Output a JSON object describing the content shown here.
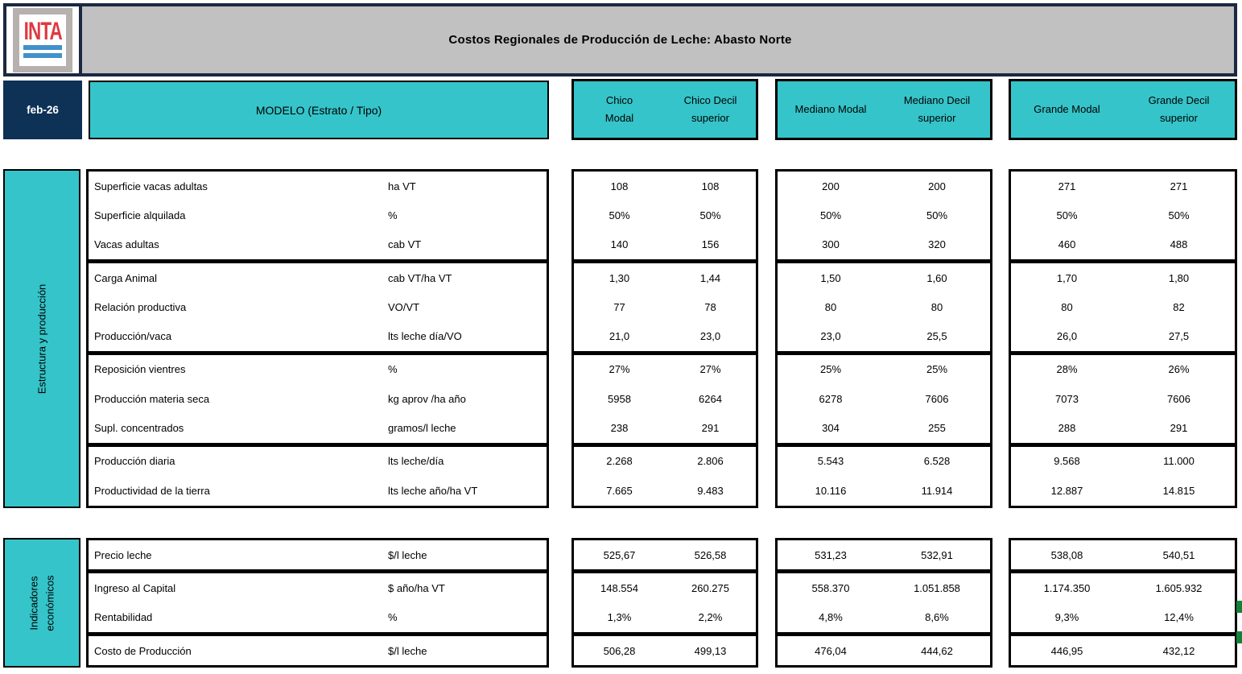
{
  "banner": {
    "logo": "INTA",
    "title": "Costos Regionales de Producción de Leche: Abasto Norte"
  },
  "header": {
    "date": "feb-26",
    "model": "MODELO (Estrato / Tipo)",
    "groups": [
      {
        "modal": "Chico\nModal",
        "decil": "Chico Decil\nsuperior"
      },
      {
        "modal": "Mediano Modal",
        "decil": "Mediano Decil\nsuperior"
      },
      {
        "modal": "Grande Modal",
        "decil": "Grande Decil\nsuperior"
      }
    ]
  },
  "sections": [
    {
      "label": "Estructura y producción"
    },
    {
      "label": "Indicadores\neconómicos"
    }
  ],
  "rows1": [
    {
      "label": "Superficie vacas adultas",
      "unit": "ha VT",
      "v": [
        "108",
        "108",
        "200",
        "200",
        "271",
        "271"
      ]
    },
    {
      "label": "Superficie alquilada",
      "unit": "%",
      "v": [
        "50%",
        "50%",
        "50%",
        "50%",
        "50%",
        "50%"
      ]
    },
    {
      "label": "Vacas adultas",
      "unit": "cab VT",
      "v": [
        "140",
        "156",
        "300",
        "320",
        "460",
        "488"
      ]
    },
    {
      "label": "Carga Animal",
      "unit": "cab VT/ha VT",
      "v": [
        "1,30",
        "1,44",
        "1,50",
        "1,60",
        "1,70",
        "1,80"
      ]
    },
    {
      "label": "Relación productiva",
      "unit": "VO/VT",
      "v": [
        "77",
        "78",
        "80",
        "80",
        "80",
        "82"
      ]
    },
    {
      "label": "Producción/vaca",
      "unit": "lts leche día/VO",
      "v": [
        "21,0",
        "23,0",
        "23,0",
        "25,5",
        "26,0",
        "27,5"
      ]
    },
    {
      "label": "Reposición vientres",
      "unit": "%",
      "v": [
        "27%",
        "27%",
        "25%",
        "25%",
        "28%",
        "26%"
      ]
    },
    {
      "label": "Producción materia seca",
      "unit": "kg aprov /ha año",
      "v": [
        "5958",
        "6264",
        "6278",
        "7606",
        "7073",
        "7606"
      ]
    },
    {
      "label": "Supl. concentrados",
      "unit": "gramos/l leche",
      "v": [
        "238",
        "291",
        "304",
        "255",
        "288",
        "291"
      ]
    },
    {
      "label": "Producción diaria",
      "unit": "lts leche/día",
      "v": [
        "2.268",
        "2.806",
        "5.543",
        "6.528",
        "9.568",
        "11.000"
      ]
    },
    {
      "label": "Productividad de la tierra",
      "unit": "lts leche año/ha VT",
      "v": [
        "7.665",
        "9.483",
        "10.116",
        "11.914",
        "12.887",
        "14.815"
      ]
    }
  ],
  "rows2": [
    {
      "label": "Precio leche",
      "unit": "$/l leche",
      "v": [
        "525,67",
        "526,58",
        "531,23",
        "532,91",
        "538,08",
        "540,51"
      ]
    },
    {
      "label": "Ingreso al Capital",
      "unit": "$ año/ha VT",
      "v": [
        "148.554",
        "260.275",
        "558.370",
        "1.051.858",
        "1.174.350",
        "1.605.932"
      ]
    },
    {
      "label": "Rentabilidad",
      "unit": "%",
      "v": [
        "1,3%",
        "2,2%",
        "4,8%",
        "8,6%",
        "9,3%",
        "12,4%"
      ]
    },
    {
      "label": "Costo de Producción",
      "unit": "$/l leche",
      "v": [
        "506,28",
        "499,13",
        "476,04",
        "444,62",
        "446,95",
        "432,12"
      ]
    }
  ],
  "colors": {
    "teal": "#35C4C9",
    "navy": "#0E3156",
    "silver": "#C1C1C1",
    "logo_red": "#DD3A40",
    "logo_blue": "#4191CA",
    "marker_green": "#15803A"
  }
}
